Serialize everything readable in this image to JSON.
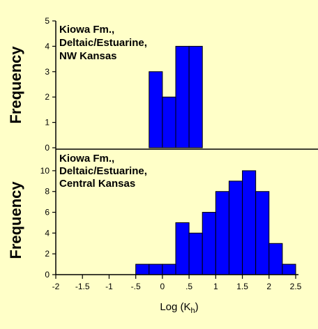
{
  "chart_data": [
    {
      "type": "bar",
      "panel": "top",
      "annotation": [
        "Kiowa Fm.,",
        "Deltaic/Estuarine,",
        "NW Kansas"
      ],
      "ylabel": "Frequency",
      "ylim": [
        0,
        5
      ],
      "yticks": [
        "0",
        "1",
        "2",
        "3",
        "4",
        "5"
      ],
      "bin_width": 0.25,
      "bins": [
        {
          "x": -0.25,
          "value": 3
        },
        {
          "x": 0.0,
          "value": 2
        },
        {
          "x": 0.25,
          "value": 4
        },
        {
          "x": 0.5,
          "value": 4
        }
      ]
    },
    {
      "type": "bar",
      "panel": "bottom",
      "annotation": [
        "Kiowa Fm.,",
        "Deltaic/Estuarine,",
        "Central Kansas"
      ],
      "ylabel": "Frequency",
      "ylim": [
        0,
        11
      ],
      "yticks": [
        "0",
        "2",
        "4",
        "6",
        "8",
        "10"
      ],
      "bin_width": 0.25,
      "bins": [
        {
          "x": -0.5,
          "value": 1
        },
        {
          "x": -0.25,
          "value": 1
        },
        {
          "x": 0.0,
          "value": 1
        },
        {
          "x": 0.25,
          "value": 5
        },
        {
          "x": 0.5,
          "value": 4
        },
        {
          "x": 0.75,
          "value": 6
        },
        {
          "x": 1.0,
          "value": 8
        },
        {
          "x": 1.25,
          "value": 9
        },
        {
          "x": 1.5,
          "value": 10
        },
        {
          "x": 1.75,
          "value": 8
        },
        {
          "x": 2.0,
          "value": 3
        },
        {
          "x": 2.25,
          "value": 1
        }
      ]
    }
  ],
  "x_axis": {
    "label": "Log (K",
    "label_subscript": "h",
    "label_close": ")",
    "xlim": [
      -2,
      2.5
    ],
    "ticks": [
      -2,
      -1.5,
      -1,
      -0.5,
      0,
      0.5,
      1,
      1.5,
      2,
      2.5
    ],
    "tick_labels": [
      "-2",
      "-1.5",
      "-1",
      "-.5",
      "0",
      ".5",
      "1",
      "1.5",
      "2",
      "2.5"
    ]
  },
  "colors": {
    "bar": "#0000FF",
    "background": "#FFFFC8",
    "axis": "#000000"
  }
}
